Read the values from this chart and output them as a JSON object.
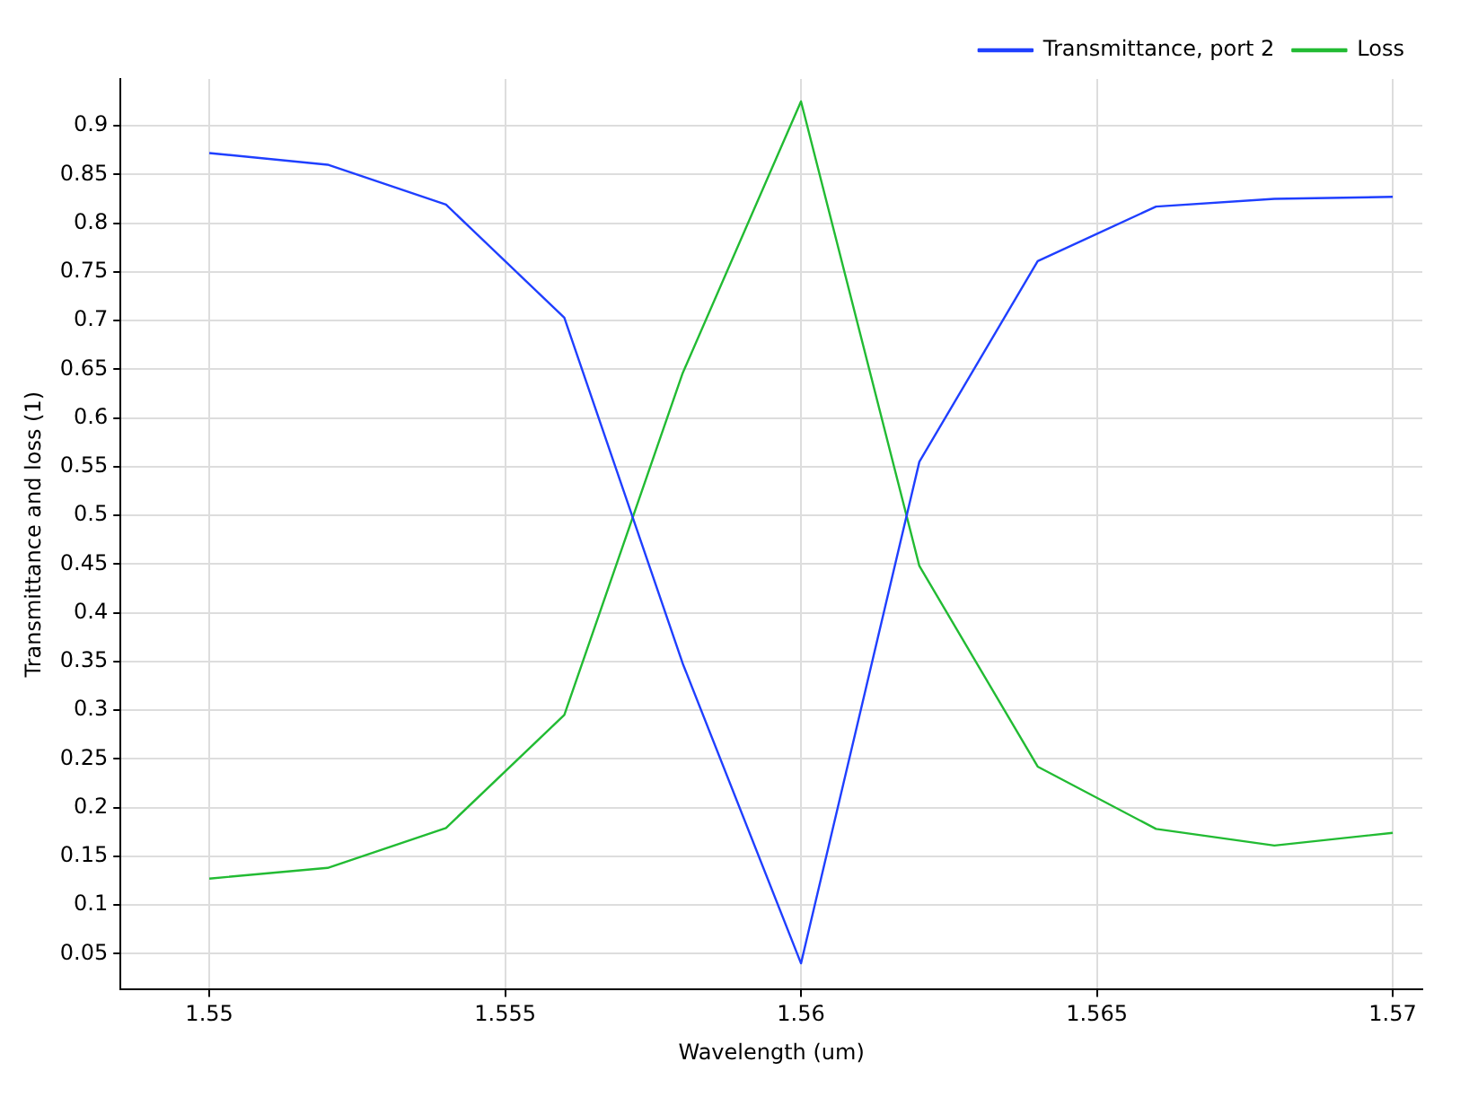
{
  "chart_data": {
    "type": "line",
    "xlabel": "Wavelength (um)",
    "ylabel": "Transmittance and loss (1)",
    "x": [
      1.55,
      1.552,
      1.554,
      1.556,
      1.558,
      1.56,
      1.562,
      1.564,
      1.566,
      1.568,
      1.57
    ],
    "series": [
      {
        "name": "Transmittance, port 2",
        "color": "#1f3fff",
        "values": [
          0.872,
          0.86,
          0.819,
          0.703,
          0.348,
          0.04,
          0.555,
          0.761,
          0.817,
          0.825,
          0.827
        ]
      },
      {
        "name": "Loss",
        "color": "#22bb33",
        "values": [
          0.127,
          0.138,
          0.179,
          0.295,
          0.646,
          0.925,
          0.448,
          0.242,
          0.178,
          0.161,
          0.174
        ]
      }
    ],
    "xlim": [
      1.5485,
      1.5705
    ],
    "xticks": [
      1.55,
      1.555,
      1.56,
      1.565,
      1.57
    ],
    "ylim": [
      0.013,
      0.948
    ],
    "yticks": [
      0.05,
      0.1,
      0.15,
      0.2,
      0.25,
      0.3,
      0.35,
      0.4,
      0.45,
      0.5,
      0.55,
      0.6,
      0.65,
      0.7,
      0.75,
      0.8,
      0.85,
      0.9
    ],
    "grid": true,
    "legend": "top right",
    "marker": "none",
    "line_style": "solid"
  }
}
